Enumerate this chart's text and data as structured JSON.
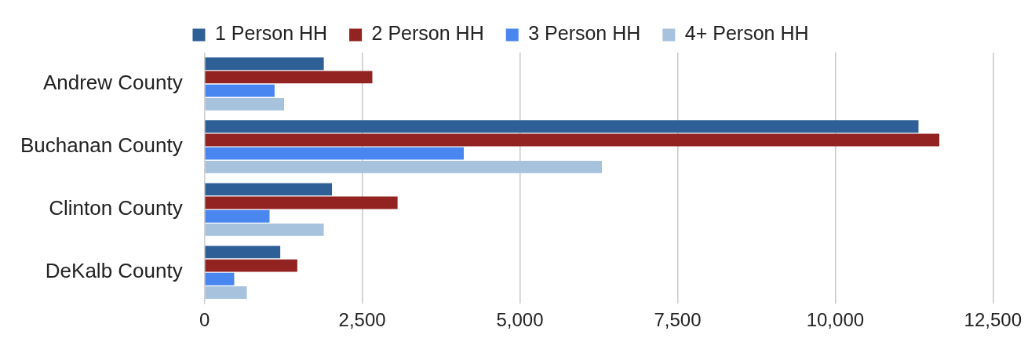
{
  "chart_data": {
    "type": "bar",
    "orientation": "horizontal",
    "categories": [
      "Andrew County",
      "Buchanan County",
      "Clinton County",
      "DeKalb County"
    ],
    "series": [
      {
        "name": "1 Person HH",
        "color": "#2e5f97",
        "values": [
          1890,
          11320,
          2020,
          1200
        ]
      },
      {
        "name": "2 Person HH",
        "color": "#922321",
        "values": [
          2660,
          11650,
          3060,
          1470
        ]
      },
      {
        "name": "3 Person HH",
        "color": "#4a86f0",
        "values": [
          1110,
          4110,
          1030,
          470
        ]
      },
      {
        "name": "4+ Person HH",
        "color": "#a6c2dc",
        "values": [
          1260,
          6300,
          1890,
          670
        ]
      }
    ],
    "xlim": [
      0,
      12500
    ],
    "xticks": [
      {
        "value": 0,
        "label": "0"
      },
      {
        "value": 2500,
        "label": "2,500"
      },
      {
        "value": 5000,
        "label": "5,000"
      },
      {
        "value": 7500,
        "label": "7,500"
      },
      {
        "value": 10000,
        "label": "10,000"
      },
      {
        "value": 12500,
        "label": "12,500"
      }
    ],
    "grid": "x",
    "legend": "top"
  }
}
